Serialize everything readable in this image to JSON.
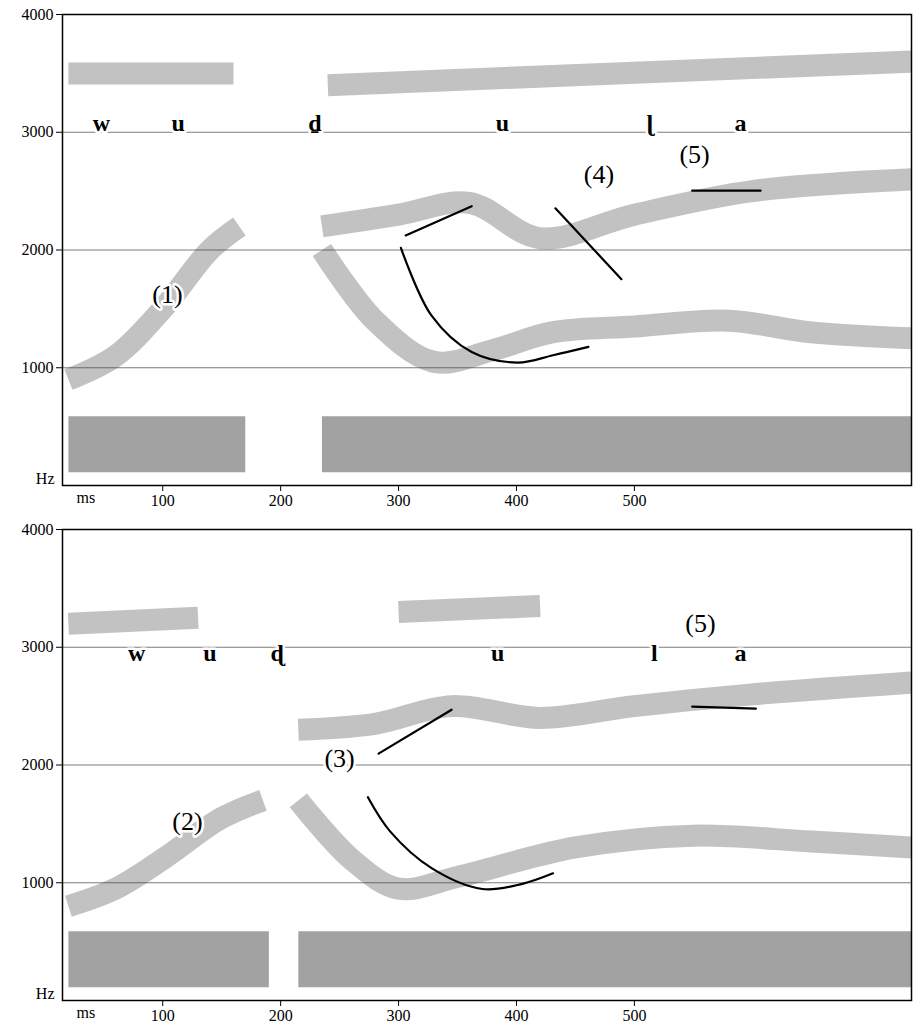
{
  "chart_data": [
    {
      "type": "spectrogram",
      "x_label": "ms",
      "y_label": "Hz",
      "xlim": [
        15,
        735
      ],
      "xticks": [
        100,
        200,
        300,
        400,
        500
      ],
      "ylim": [
        0,
        4000
      ],
      "yticks": [
        1000,
        2000,
        3000,
        4000
      ],
      "grid": true,
      "segments": [
        {
          "text": "w",
          "x": 48,
          "y": 3080
        },
        {
          "text": "u",
          "x": 113,
          "y": 3080
        },
        {
          "text": "d̠",
          "x": 229,
          "y": 3080
        },
        {
          "text": "u",
          "x": 388,
          "y": 3080
        },
        {
          "text": "ɭ",
          "x": 513,
          "y": 3080
        },
        {
          "text": "a",
          "x": 590,
          "y": 3080
        }
      ],
      "annotations": [
        {
          "text": "(1)",
          "x": 104,
          "y": 1620
        },
        {
          "text": "(4)",
          "x": 470,
          "y": 2640
        },
        {
          "text": "(5)",
          "x": 551,
          "y": 2810
        }
      ],
      "tracings": [
        {
          "x": [
            306,
            362
          ],
          "y": [
            2124,
            2372
          ]
        },
        {
          "x": [
            302,
            328,
            362,
            401,
            431,
            461
          ],
          "y": [
            2018,
            1442,
            1133,
            1044,
            1106,
            1177
          ]
        },
        {
          "x": [
            433,
            489
          ],
          "y": [
            2354,
            1752
          ]
        },
        {
          "x": [
            549,
            607
          ],
          "y": [
            2504,
            2504
          ]
        }
      ],
      "bands": [
        {
          "x": [
            20,
            170
          ],
          "y": [
            350,
            350
          ]
        },
        {
          "x": [
            235,
            735
          ],
          "y": [
            350,
            350
          ]
        },
        {
          "x": [
            20,
            60,
            100,
            140,
            165
          ],
          "y": [
            900,
            1100,
            1500,
            2000,
            2200
          ]
        },
        {
          "x": [
            235,
            280,
            330,
            380,
            430,
            500,
            580,
            650,
            735
          ],
          "y": [
            2000,
            1400,
            1050,
            1150,
            1300,
            1350,
            1400,
            1300,
            1250
          ]
        },
        {
          "x": [
            235,
            300,
            360,
            420,
            500,
            600,
            735
          ],
          "y": [
            2200,
            2300,
            2400,
            2100,
            2300,
            2500,
            2600
          ]
        },
        {
          "x": [
            20,
            160
          ],
          "y": [
            3500,
            3500
          ]
        },
        {
          "x": [
            240,
            735
          ],
          "y": [
            3400,
            3600
          ]
        }
      ]
    },
    {
      "type": "spectrogram",
      "x_label": "ms",
      "y_label": "Hz",
      "xlim": [
        15,
        735
      ],
      "xticks": [
        100,
        200,
        300,
        400,
        500
      ],
      "ylim": [
        0,
        4000
      ],
      "yticks": [
        1000,
        2000,
        3000,
        4000
      ],
      "grid": true,
      "segments": [
        {
          "text": "w",
          "x": 78,
          "y": 2950
        },
        {
          "text": "u",
          "x": 140,
          "y": 2950
        },
        {
          "text": "ɖ",
          "x": 197,
          "y": 2950
        },
        {
          "text": "u",
          "x": 384,
          "y": 2950
        },
        {
          "text": "l",
          "x": 517,
          "y": 2950
        },
        {
          "text": "a",
          "x": 590,
          "y": 2950
        }
      ],
      "annotations": [
        {
          "text": "(2)",
          "x": 121,
          "y": 1520
        },
        {
          "text": "(3)",
          "x": 250,
          "y": 2050
        },
        {
          "text": "(5)",
          "x": 556,
          "y": 3200
        }
      ],
      "tracings": [
        {
          "x": [
            283,
            345
          ],
          "y": [
            2097,
            2469
          ]
        },
        {
          "x": [
            274,
            293,
            328,
            371,
            405,
            431
          ],
          "y": [
            1726,
            1434,
            1124,
            947,
            991,
            1080
          ]
        },
        {
          "x": [
            549,
            603
          ],
          "y": [
            2496,
            2478
          ]
        }
      ],
      "bands": [
        {
          "x": [
            20,
            190
          ],
          "y": [
            350,
            350
          ]
        },
        {
          "x": [
            215,
            735
          ],
          "y": [
            350,
            350
          ]
        },
        {
          "x": [
            20,
            60,
            100,
            150,
            185
          ],
          "y": [
            800,
            950,
            1200,
            1550,
            1700
          ]
        },
        {
          "x": [
            215,
            260,
            300,
            350,
            450,
            550,
            650,
            735
          ],
          "y": [
            1700,
            1200,
            950,
            1050,
            1300,
            1400,
            1350,
            1300
          ]
        },
        {
          "x": [
            215,
            280,
            345,
            420,
            500,
            600,
            735
          ],
          "y": [
            2300,
            2350,
            2500,
            2400,
            2500,
            2600,
            2700
          ]
        },
        {
          "x": [
            20,
            130
          ],
          "y": [
            3200,
            3250
          ]
        },
        {
          "x": [
            300,
            420
          ],
          "y": [
            3300,
            3350
          ]
        }
      ]
    }
  ]
}
